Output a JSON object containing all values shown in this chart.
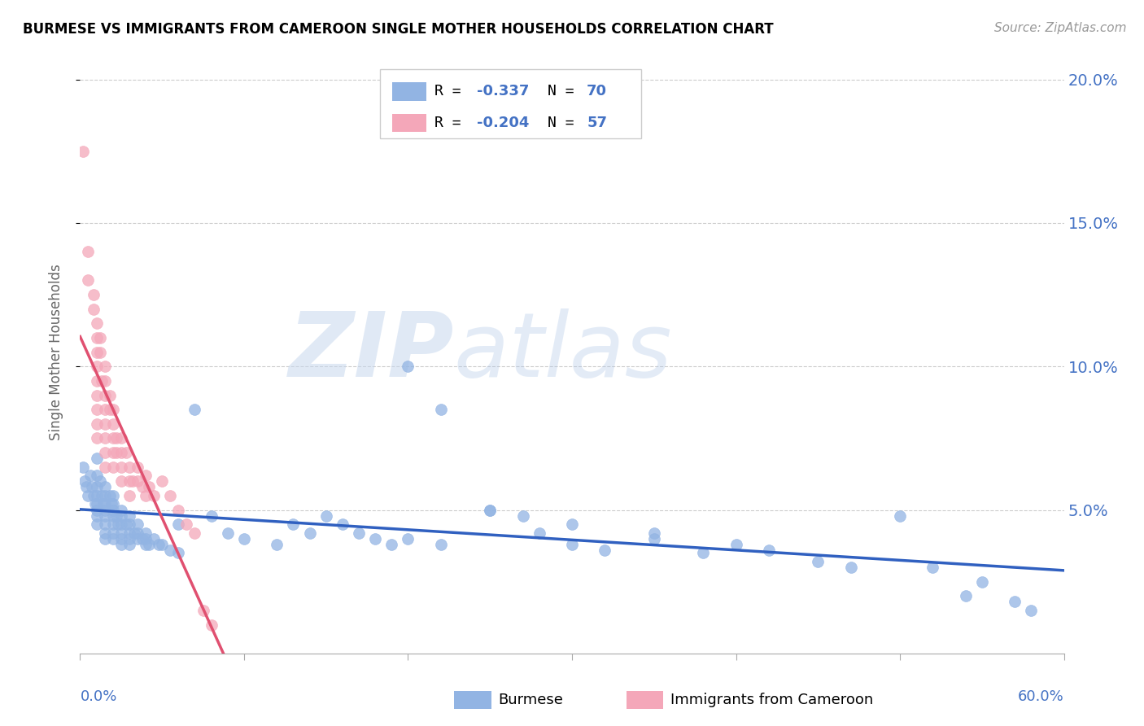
{
  "title": "BURMESE VS IMMIGRANTS FROM CAMEROON SINGLE MOTHER HOUSEHOLDS CORRELATION CHART",
  "source": "Source: ZipAtlas.com",
  "ylabel": "Single Mother Households",
  "xmin": 0.0,
  "xmax": 0.6,
  "ymin": 0.0,
  "ymax": 0.21,
  "yticks": [
    0.05,
    0.1,
    0.15,
    0.2
  ],
  "ytick_labels": [
    "5.0%",
    "10.0%",
    "15.0%",
    "20.0%"
  ],
  "burmese_color": "#92b4e3",
  "cameroon_color": "#f4a7b9",
  "burmese_line_color": "#3060c0",
  "cameroon_line_color": "#e05070",
  "cameroon_dash_color": "#e0a0b0",
  "watermark_zip": "ZIP",
  "watermark_atlas": "atlas",
  "burmese_scatter": [
    [
      0.002,
      0.065
    ],
    [
      0.003,
      0.06
    ],
    [
      0.004,
      0.058
    ],
    [
      0.005,
      0.055
    ],
    [
      0.006,
      0.062
    ],
    [
      0.007,
      0.058
    ],
    [
      0.008,
      0.055
    ],
    [
      0.009,
      0.052
    ],
    [
      0.01,
      0.068
    ],
    [
      0.01,
      0.062
    ],
    [
      0.01,
      0.058
    ],
    [
      0.01,
      0.055
    ],
    [
      0.01,
      0.052
    ],
    [
      0.01,
      0.05
    ],
    [
      0.01,
      0.048
    ],
    [
      0.01,
      0.045
    ],
    [
      0.012,
      0.06
    ],
    [
      0.013,
      0.055
    ],
    [
      0.014,
      0.052
    ],
    [
      0.015,
      0.058
    ],
    [
      0.015,
      0.055
    ],
    [
      0.015,
      0.052
    ],
    [
      0.015,
      0.05
    ],
    [
      0.015,
      0.048
    ],
    [
      0.015,
      0.045
    ],
    [
      0.015,
      0.042
    ],
    [
      0.015,
      0.04
    ],
    [
      0.018,
      0.055
    ],
    [
      0.019,
      0.052
    ],
    [
      0.02,
      0.055
    ],
    [
      0.02,
      0.052
    ],
    [
      0.02,
      0.05
    ],
    [
      0.02,
      0.048
    ],
    [
      0.02,
      0.045
    ],
    [
      0.02,
      0.042
    ],
    [
      0.02,
      0.04
    ],
    [
      0.022,
      0.048
    ],
    [
      0.023,
      0.045
    ],
    [
      0.025,
      0.05
    ],
    [
      0.025,
      0.048
    ],
    [
      0.025,
      0.045
    ],
    [
      0.025,
      0.042
    ],
    [
      0.025,
      0.04
    ],
    [
      0.025,
      0.038
    ],
    [
      0.028,
      0.045
    ],
    [
      0.03,
      0.048
    ],
    [
      0.03,
      0.045
    ],
    [
      0.03,
      0.042
    ],
    [
      0.03,
      0.04
    ],
    [
      0.03,
      0.038
    ],
    [
      0.033,
      0.042
    ],
    [
      0.035,
      0.045
    ],
    [
      0.035,
      0.042
    ],
    [
      0.035,
      0.04
    ],
    [
      0.038,
      0.04
    ],
    [
      0.04,
      0.042
    ],
    [
      0.04,
      0.04
    ],
    [
      0.04,
      0.038
    ],
    [
      0.042,
      0.038
    ],
    [
      0.045,
      0.04
    ],
    [
      0.048,
      0.038
    ],
    [
      0.05,
      0.038
    ],
    [
      0.055,
      0.036
    ],
    [
      0.06,
      0.035
    ],
    [
      0.2,
      0.1
    ],
    [
      0.22,
      0.085
    ],
    [
      0.25,
      0.05
    ],
    [
      0.27,
      0.048
    ],
    [
      0.3,
      0.045
    ],
    [
      0.35,
      0.042
    ]
  ],
  "burmese_scatter2": [
    [
      0.06,
      0.045
    ],
    [
      0.07,
      0.085
    ],
    [
      0.08,
      0.048
    ],
    [
      0.09,
      0.042
    ],
    [
      0.1,
      0.04
    ],
    [
      0.12,
      0.038
    ],
    [
      0.13,
      0.045
    ],
    [
      0.14,
      0.042
    ],
    [
      0.15,
      0.048
    ],
    [
      0.16,
      0.045
    ],
    [
      0.17,
      0.042
    ],
    [
      0.18,
      0.04
    ],
    [
      0.19,
      0.038
    ],
    [
      0.2,
      0.04
    ],
    [
      0.22,
      0.038
    ],
    [
      0.25,
      0.05
    ],
    [
      0.28,
      0.042
    ],
    [
      0.3,
      0.038
    ],
    [
      0.32,
      0.036
    ],
    [
      0.35,
      0.04
    ],
    [
      0.38,
      0.035
    ],
    [
      0.4,
      0.038
    ],
    [
      0.42,
      0.036
    ],
    [
      0.45,
      0.032
    ],
    [
      0.47,
      0.03
    ],
    [
      0.5,
      0.048
    ],
    [
      0.52,
      0.03
    ],
    [
      0.54,
      0.02
    ],
    [
      0.55,
      0.025
    ],
    [
      0.57,
      0.018
    ],
    [
      0.58,
      0.015
    ]
  ],
  "cameroon_scatter": [
    [
      0.002,
      0.175
    ],
    [
      0.005,
      0.14
    ],
    [
      0.005,
      0.13
    ],
    [
      0.008,
      0.125
    ],
    [
      0.008,
      0.12
    ],
    [
      0.01,
      0.115
    ],
    [
      0.01,
      0.11
    ],
    [
      0.01,
      0.105
    ],
    [
      0.01,
      0.1
    ],
    [
      0.01,
      0.095
    ],
    [
      0.01,
      0.09
    ],
    [
      0.01,
      0.085
    ],
    [
      0.01,
      0.08
    ],
    [
      0.01,
      0.075
    ],
    [
      0.012,
      0.11
    ],
    [
      0.012,
      0.105
    ],
    [
      0.013,
      0.095
    ],
    [
      0.015,
      0.1
    ],
    [
      0.015,
      0.095
    ],
    [
      0.015,
      0.09
    ],
    [
      0.015,
      0.085
    ],
    [
      0.015,
      0.08
    ],
    [
      0.015,
      0.075
    ],
    [
      0.015,
      0.07
    ],
    [
      0.015,
      0.065
    ],
    [
      0.018,
      0.09
    ],
    [
      0.018,
      0.085
    ],
    [
      0.02,
      0.085
    ],
    [
      0.02,
      0.08
    ],
    [
      0.02,
      0.075
    ],
    [
      0.02,
      0.07
    ],
    [
      0.02,
      0.065
    ],
    [
      0.022,
      0.075
    ],
    [
      0.022,
      0.07
    ],
    [
      0.025,
      0.075
    ],
    [
      0.025,
      0.07
    ],
    [
      0.025,
      0.065
    ],
    [
      0.025,
      0.06
    ],
    [
      0.028,
      0.07
    ],
    [
      0.03,
      0.065
    ],
    [
      0.03,
      0.06
    ],
    [
      0.03,
      0.055
    ],
    [
      0.032,
      0.06
    ],
    [
      0.035,
      0.065
    ],
    [
      0.035,
      0.06
    ],
    [
      0.038,
      0.058
    ],
    [
      0.04,
      0.062
    ],
    [
      0.04,
      0.055
    ],
    [
      0.042,
      0.058
    ],
    [
      0.045,
      0.055
    ],
    [
      0.05,
      0.06
    ],
    [
      0.055,
      0.055
    ],
    [
      0.06,
      0.05
    ],
    [
      0.065,
      0.045
    ],
    [
      0.07,
      0.042
    ],
    [
      0.075,
      0.015
    ],
    [
      0.08,
      0.01
    ]
  ]
}
